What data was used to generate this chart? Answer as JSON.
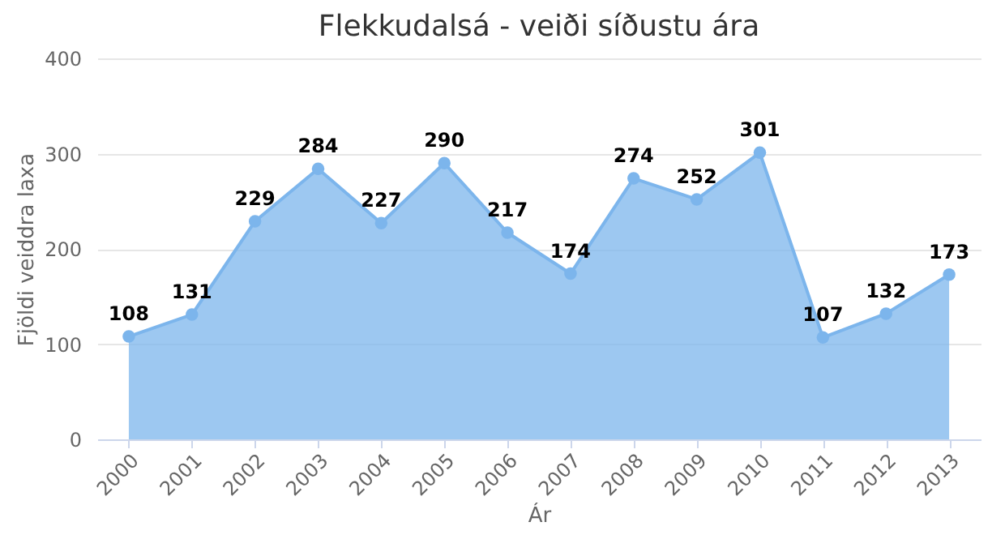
{
  "chart_data": {
    "type": "area",
    "title": "Flekkudalsá - veiði síðustu ára",
    "xlabel": "Ár",
    "ylabel": "Fjöldi veiddra laxa",
    "categories": [
      "2000",
      "2001",
      "2002",
      "2003",
      "2004",
      "2005",
      "2006",
      "2007",
      "2008",
      "2009",
      "2010",
      "2011",
      "2012",
      "2013"
    ],
    "series": [
      {
        "color": "#7cb5ec",
        "values": [
          108,
          131,
          229,
          284,
          227,
          290,
          217,
          174,
          274,
          252,
          301,
          107,
          132,
          173
        ]
      }
    ],
    "ylim": [
      0,
      400
    ],
    "yticks": [
      0,
      100,
      200,
      300,
      400
    ],
    "grid": "y",
    "marker": "circle",
    "data_labels": true
  }
}
